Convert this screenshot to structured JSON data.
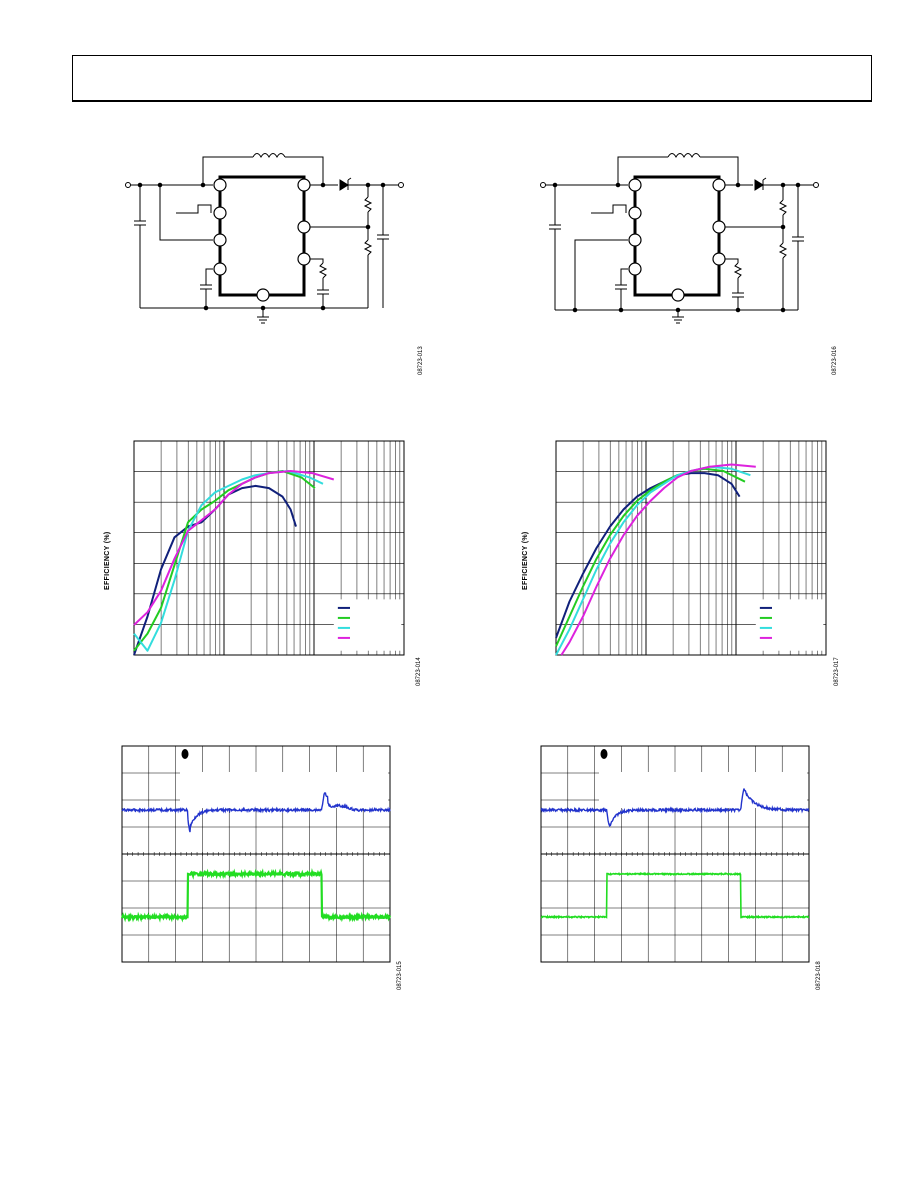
{
  "figures": {
    "schematic_left": {
      "id": "08723-013"
    },
    "schematic_right": {
      "id": "08723-016"
    },
    "efficiency_left": {
      "id": "08723-014",
      "chart_data": {
        "type": "line",
        "ylabel": "EFFICIENCY (%)",
        "x_scale": "log",
        "x_decades": 3,
        "series": [
          {
            "color": "#10207a",
            "points": [
              [
                0.0,
                0.0
              ],
              [
                0.05,
                0.18
              ],
              [
                0.1,
                0.4
              ],
              [
                0.15,
                0.55
              ],
              [
                0.2,
                0.6
              ],
              [
                0.25,
                0.62
              ],
              [
                0.3,
                0.68
              ],
              [
                0.35,
                0.75
              ],
              [
                0.4,
                0.78
              ],
              [
                0.45,
                0.79
              ],
              [
                0.5,
                0.78
              ],
              [
                0.55,
                0.74
              ],
              [
                0.58,
                0.68
              ],
              [
                0.6,
                0.6
              ]
            ]
          },
          {
            "color": "#22cc22",
            "points": [
              [
                0.0,
                0.02
              ],
              [
                0.05,
                0.1
              ],
              [
                0.1,
                0.22
              ],
              [
                0.15,
                0.42
              ],
              [
                0.2,
                0.62
              ],
              [
                0.25,
                0.68
              ],
              [
                0.3,
                0.72
              ],
              [
                0.35,
                0.77
              ],
              [
                0.4,
                0.8
              ],
              [
                0.45,
                0.83
              ],
              [
                0.5,
                0.85
              ],
              [
                0.55,
                0.86
              ],
              [
                0.62,
                0.83
              ],
              [
                0.67,
                0.78
              ]
            ]
          },
          {
            "color": "#33dddd",
            "points": [
              [
                0.0,
                0.1
              ],
              [
                0.05,
                0.02
              ],
              [
                0.1,
                0.15
              ],
              [
                0.15,
                0.35
              ],
              [
                0.2,
                0.58
              ],
              [
                0.25,
                0.7
              ],
              [
                0.3,
                0.76
              ],
              [
                0.35,
                0.79
              ],
              [
                0.4,
                0.82
              ],
              [
                0.45,
                0.84
              ],
              [
                0.5,
                0.85
              ],
              [
                0.57,
                0.86
              ],
              [
                0.65,
                0.83
              ],
              [
                0.7,
                0.8
              ]
            ]
          },
          {
            "color": "#dd22dd",
            "points": [
              [
                0.0,
                0.14
              ],
              [
                0.05,
                0.2
              ],
              [
                0.1,
                0.3
              ],
              [
                0.15,
                0.45
              ],
              [
                0.2,
                0.58
              ],
              [
                0.25,
                0.63
              ],
              [
                0.3,
                0.68
              ],
              [
                0.35,
                0.75
              ],
              [
                0.4,
                0.8
              ],
              [
                0.45,
                0.83
              ],
              [
                0.5,
                0.85
              ],
              [
                0.58,
                0.86
              ],
              [
                0.66,
                0.85
              ],
              [
                0.74,
                0.82
              ]
            ]
          }
        ],
        "ylim": [
          0,
          1
        ],
        "grid": true,
        "legend": "bottom-right"
      }
    },
    "efficiency_right": {
      "id": "08723-017",
      "chart_data": {
        "type": "line",
        "ylabel": "EFFICIENCY (%)",
        "x_scale": "log",
        "x_decades": 3,
        "series": [
          {
            "color": "#10207a",
            "points": [
              [
                0.0,
                0.08
              ],
              [
                0.05,
                0.25
              ],
              [
                0.1,
                0.38
              ],
              [
                0.15,
                0.5
              ],
              [
                0.2,
                0.6
              ],
              [
                0.25,
                0.68
              ],
              [
                0.3,
                0.74
              ],
              [
                0.35,
                0.78
              ],
              [
                0.4,
                0.81
              ],
              [
                0.45,
                0.84
              ],
              [
                0.5,
                0.85
              ],
              [
                0.55,
                0.85
              ],
              [
                0.6,
                0.84
              ],
              [
                0.65,
                0.8
              ],
              [
                0.68,
                0.74
              ]
            ]
          },
          {
            "color": "#22cc22",
            "points": [
              [
                0.0,
                0.04
              ],
              [
                0.05,
                0.18
              ],
              [
                0.1,
                0.32
              ],
              [
                0.15,
                0.45
              ],
              [
                0.2,
                0.56
              ],
              [
                0.25,
                0.65
              ],
              [
                0.3,
                0.72
              ],
              [
                0.35,
                0.77
              ],
              [
                0.4,
                0.81
              ],
              [
                0.45,
                0.84
              ],
              [
                0.5,
                0.86
              ],
              [
                0.55,
                0.87
              ],
              [
                0.62,
                0.86
              ],
              [
                0.7,
                0.81
              ]
            ]
          },
          {
            "color": "#33dddd",
            "points": [
              [
                0.0,
                0.0
              ],
              [
                0.05,
                0.12
              ],
              [
                0.1,
                0.26
              ],
              [
                0.15,
                0.4
              ],
              [
                0.2,
                0.52
              ],
              [
                0.25,
                0.62
              ],
              [
                0.3,
                0.7
              ],
              [
                0.35,
                0.76
              ],
              [
                0.4,
                0.8
              ],
              [
                0.45,
                0.84
              ],
              [
                0.5,
                0.86
              ],
              [
                0.57,
                0.88
              ],
              [
                0.65,
                0.87
              ],
              [
                0.72,
                0.84
              ]
            ]
          },
          {
            "color": "#dd22dd",
            "points": [
              [
                0.02,
                0.0
              ],
              [
                0.05,
                0.06
              ],
              [
                0.1,
                0.18
              ],
              [
                0.15,
                0.32
              ],
              [
                0.2,
                0.45
              ],
              [
                0.25,
                0.56
              ],
              [
                0.3,
                0.65
              ],
              [
                0.35,
                0.72
              ],
              [
                0.4,
                0.78
              ],
              [
                0.45,
                0.83
              ],
              [
                0.5,
                0.86
              ],
              [
                0.57,
                0.88
              ],
              [
                0.65,
                0.89
              ],
              [
                0.74,
                0.88
              ]
            ]
          }
        ],
        "ylim": [
          0,
          1
        ],
        "grid": true,
        "legend": "bottom-right"
      }
    },
    "scope_left": {
      "id": "08723-015",
      "ch1_color": "#2233cc",
      "ch2_color": "#22dd22"
    },
    "scope_right": {
      "id": "08723-018",
      "ch1_color": "#2233cc",
      "ch2_color": "#22dd22"
    }
  }
}
